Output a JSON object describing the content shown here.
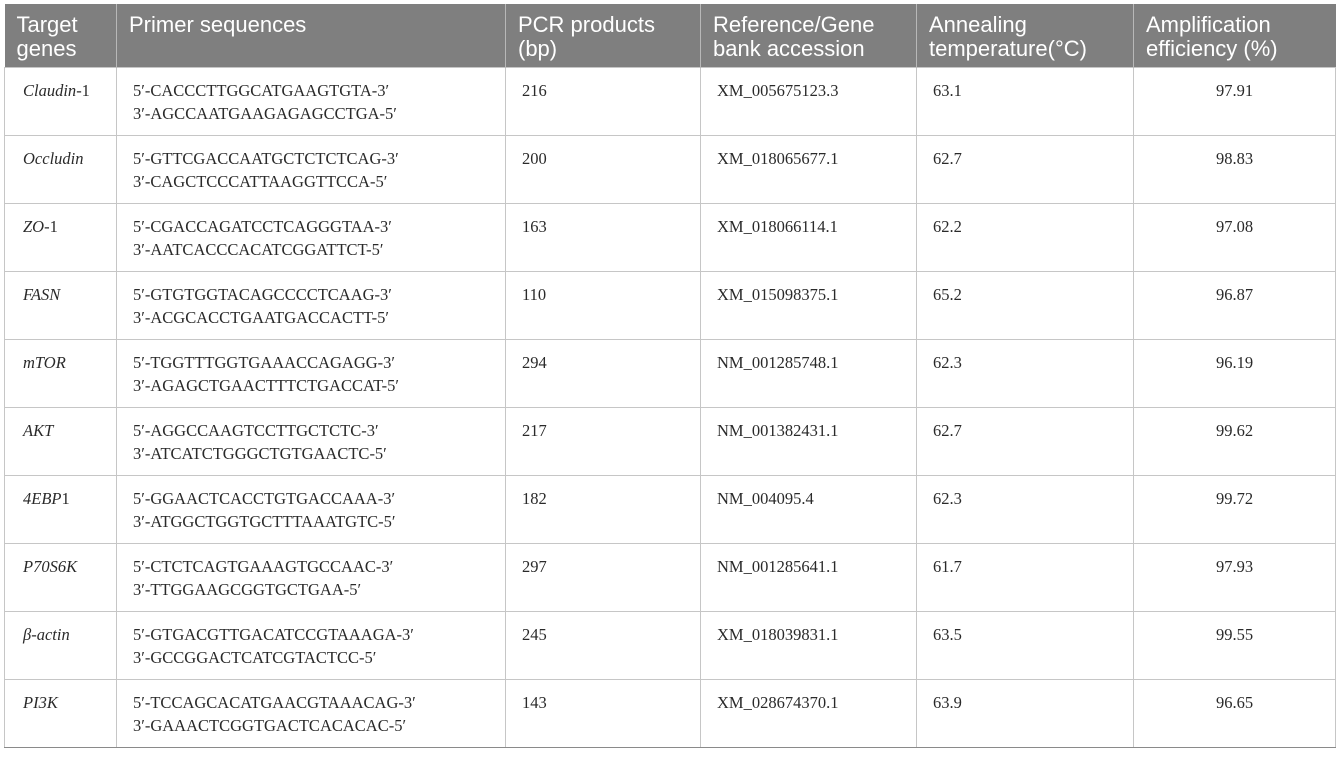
{
  "table": {
    "headers": [
      "Target genes",
      "Primer sequences",
      "PCR products (bp)",
      "Reference/Gene bank accession",
      "Annealing temperature(°C)",
      "Amplification efficiency (%)"
    ],
    "rows": [
      {
        "gene": "Claudin",
        "gene_suffix": "-1",
        "fwd": "5′-CACCCTTGGCATGAAGTGTA-3′",
        "rev": "3′-AGCCAATGAAGAGAGCCTGA-5′",
        "bp": "216",
        "accession": "XM_005675123.3",
        "temp": "63.1",
        "eff": "97.91"
      },
      {
        "gene": "Occludin",
        "gene_suffix": "",
        "fwd": "5′-GTTCGACCAATGCTCTCTCAG-3′",
        "rev": "3′-CAGCTCCCATTAAGGTTCCA-5′",
        "bp": "200",
        "accession": "XM_018065677.1",
        "temp": "62.7",
        "eff": "98.83"
      },
      {
        "gene": "ZO",
        "gene_suffix": "-1",
        "fwd": "5′-CGACCAGATCCTCAGGGTAA-3′",
        "rev": "3′-AATCACCCACATCGGATTCT-5′",
        "bp": "163",
        "accession": "XM_018066114.1",
        "temp": "62.2",
        "eff": "97.08"
      },
      {
        "gene": "FASN",
        "gene_suffix": "",
        "fwd": "5′-GTGTGGTACAGCCCCTCAAG-3′",
        "rev": "3′-ACGCACCTGAATGACCACTT-5′",
        "bp": "110",
        "accession": "XM_015098375.1",
        "temp": "65.2",
        "eff": "96.87"
      },
      {
        "gene": "mTOR",
        "gene_suffix": "",
        "fwd": "5′-TGGTTTGGTGAAACCAGAGG-3′",
        "rev": "3′-AGAGCTGAACTTTCTGACCAT-5′",
        "bp": "294",
        "accession": "NM_001285748.1",
        "temp": "62.3",
        "eff": "96.19"
      },
      {
        "gene": "AKT",
        "gene_suffix": "",
        "fwd": "5′-AGGCCAAGTCCTTGCTCTC-3′",
        "rev": "3′-ATCATCTGGGCTGTGAACTC-5′",
        "bp": "217",
        "accession": "NM_001382431.1",
        "temp": "62.7",
        "eff": "99.62"
      },
      {
        "gene": "4EBP",
        "gene_suffix": "1",
        "fwd": "5′-GGAACTCACCTGTGACCAAA-3′",
        "rev": "3′-ATGGCTGGTGCTTTAAATGTC-5′",
        "bp": "182",
        "accession": "NM_004095.4",
        "temp": "62.3",
        "eff": "99.72"
      },
      {
        "gene": "P70S6K",
        "gene_suffix": "",
        "fwd": "5′-CTCTCAGTGAAAGTGCCAAC-3′",
        "rev": "3′-TTGGAAGCGGTGCTGAA-5′",
        "bp": "297",
        "accession": "NM_001285641.1",
        "temp": "61.7",
        "eff": "97.93"
      },
      {
        "gene": "β-actin",
        "gene_suffix": "",
        "fwd": "5′-GTGACGTTGACATCCGTAAAGA-3′",
        "rev": "3′-GCCGGACTCATCGTACTCC-5′",
        "bp": "245",
        "accession": "XM_018039831.1",
        "temp": "63.5",
        "eff": "99.55"
      },
      {
        "gene": "PI3K",
        "gene_suffix": "",
        "fwd": "5′-TCCAGCACATGAACGTAAACAG-3′",
        "rev": "3′-GAAACTCGGTGACTCACACAC-5′",
        "bp": "143",
        "accession": "XM_028674370.1",
        "temp": "63.9",
        "eff": "96.65"
      }
    ]
  }
}
